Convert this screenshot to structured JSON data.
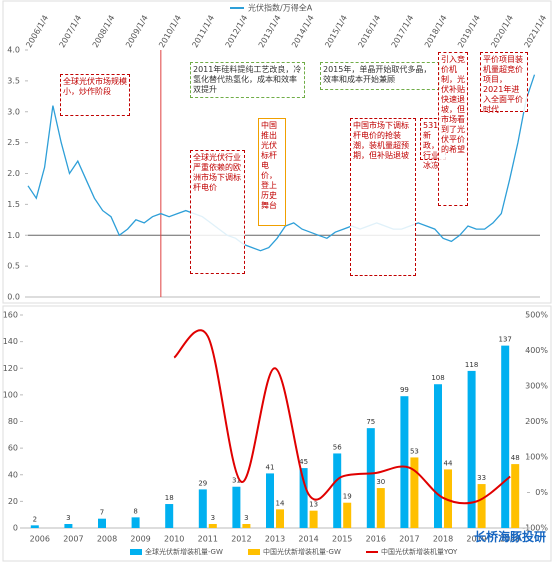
{
  "chart_data": [
    {
      "type": "line",
      "series": [
        {
          "name": "光伏指数/万得全A",
          "color": "#2e9fd8",
          "x": [
            "2006/1",
            "2006/4",
            "2006/7",
            "2006/10",
            "2007/1",
            "2007/4",
            "2007/7",
            "2007/10",
            "2008/1",
            "2008/4",
            "2008/7",
            "2008/10",
            "2009/1",
            "2009/4",
            "2009/7",
            "2009/10",
            "2010/1",
            "2010/4",
            "2010/7",
            "2010/10",
            "2011/1",
            "2011/4",
            "2011/7",
            "2011/10",
            "2012/1",
            "2012/4",
            "2012/7",
            "2012/10",
            "2013/1",
            "2013/4",
            "2013/7",
            "2013/10",
            "2014/1",
            "2014/4",
            "2014/7",
            "2014/10",
            "2015/1",
            "2015/4",
            "2015/7",
            "2015/10",
            "2016/1",
            "2016/4",
            "2016/7",
            "2016/10",
            "2017/1",
            "2017/4",
            "2017/7",
            "2017/10",
            "2018/1",
            "2018/4",
            "2018/7",
            "2018/10",
            "2019/1",
            "2019/4",
            "2019/7",
            "2019/10",
            "2020/1",
            "2020/4",
            "2020/7",
            "2020/10",
            "2021/1",
            "2021/4"
          ],
          "values": [
            1.8,
            1.6,
            2.1,
            3.1,
            2.5,
            2.0,
            2.2,
            1.9,
            1.6,
            1.4,
            1.3,
            1.0,
            1.1,
            1.25,
            1.2,
            1.3,
            1.35,
            1.3,
            1.35,
            1.4,
            1.35,
            1.3,
            1.2,
            1.1,
            1.0,
            0.95,
            0.85,
            0.8,
            0.75,
            0.8,
            0.95,
            1.15,
            1.2,
            1.1,
            1.05,
            1.0,
            0.95,
            1.05,
            1.1,
            1.15,
            1.1,
            1.15,
            1.2,
            1.15,
            1.1,
            1.1,
            1.15,
            1.2,
            1.15,
            1.1,
            0.95,
            0.9,
            1.0,
            1.15,
            1.1,
            1.1,
            1.2,
            1.35,
            1.9,
            2.5,
            3.2,
            3.6
          ]
        }
      ],
      "xlim": [
        "2006/1",
        "2021/6"
      ],
      "xticks": [
        "2006/1/4",
        "2007/1/4",
        "2008/1/4",
        "2009/1/4",
        "2010/1/4",
        "2011/1/4",
        "2012/1/4",
        "2013/1/4",
        "2014/1/4",
        "2015/1/4",
        "2016/1/4",
        "2017/1/4",
        "2018/1/4",
        "2019/1/4",
        "2020/1/4",
        "2021/1/4"
      ],
      "ylim": [
        0,
        4
      ],
      "yticks": [
        {
          "value": 0,
          "label": "0.0"
        },
        {
          "value": 0.5,
          "label": "0.5"
        },
        {
          "value": 1,
          "label": "1.0"
        },
        {
          "value": 1.5,
          "label": "1.5"
        },
        {
          "value": 2,
          "label": "2.0"
        },
        {
          "value": 2.5,
          "label": "2.5"
        },
        {
          "value": 3,
          "label": "3.0"
        },
        {
          "value": 3.5,
          "label": "3.5"
        },
        {
          "value": 4,
          "label": "4.0"
        }
      ],
      "reference_line": 1,
      "marker_line": "2010/1",
      "annotations": [
        "全球光伏市场规模小，炒作阶段",
        "2011年硅料提纯工艺改良，冷氢化替代热氢化，成本和效率双提升",
        "2015年，单晶开始取代多晶，效率和成本开始兼顾",
        "全球光伏行业严重依赖的欧洲市场下调标杆电价",
        "中国推出光伏标杆电价，登上历史舞台",
        "中国市场下调标杆电价的抢装潮，装机量超预期，但补贴退坡",
        "531新政，行业冰冻",
        "引入竞价机制，光伏补贴快速退坡，但市场看到了光伏平价的希望",
        "平价项目装机量超竞价项目，2021年进入全面平价时代"
      ]
    },
    {
      "type": "bar",
      "categories": [
        "2006",
        "2007",
        "2008",
        "2009",
        "2010",
        "2011",
        "2012",
        "2013",
        "2014",
        "2015",
        "2016",
        "2017",
        "2018",
        "2019",
        "2020"
      ],
      "series": [
        {
          "name": "全球光伏新增装机量-GW",
          "color": "#00b0f0",
          "values": [
            2,
            3,
            7,
            8,
            18,
            29,
            31,
            41,
            45,
            56,
            75,
            99,
            108,
            118,
            137
          ]
        },
        {
          "name": "中国光伏新增装机量-GW",
          "color": "#ffc000",
          "values": [
            null,
            null,
            null,
            null,
            null,
            3,
            3,
            14,
            13,
            19,
            30,
            53,
            44,
            33,
            48
          ]
        },
        {
          "name": "中国光伏新增装机量YOY",
          "color": "#e00000",
          "axis": "y2",
          "type": "line",
          "values": [
            null,
            null,
            null,
            null,
            380,
            440,
            30,
            350,
            -5,
            45,
            55,
            70,
            -15,
            -25,
            45
          ]
        }
      ],
      "ylim": [
        0,
        160
      ],
      "yticks": [
        0,
        20,
        40,
        60,
        80,
        100,
        120,
        140,
        160
      ],
      "y2lim": [
        -100,
        500
      ],
      "y2ticks": [
        {
          "value": -100,
          "label": "-100%"
        },
        {
          "value": 0,
          "label": "0%"
        },
        {
          "value": 100,
          "label": "100%"
        },
        {
          "value": 200,
          "label": "200%"
        },
        {
          "value": 300,
          "label": "300%"
        },
        {
          "value": 400,
          "label": "400%"
        },
        {
          "value": 500,
          "label": "500%"
        }
      ],
      "watermark": "长桥海豚投研"
    }
  ]
}
